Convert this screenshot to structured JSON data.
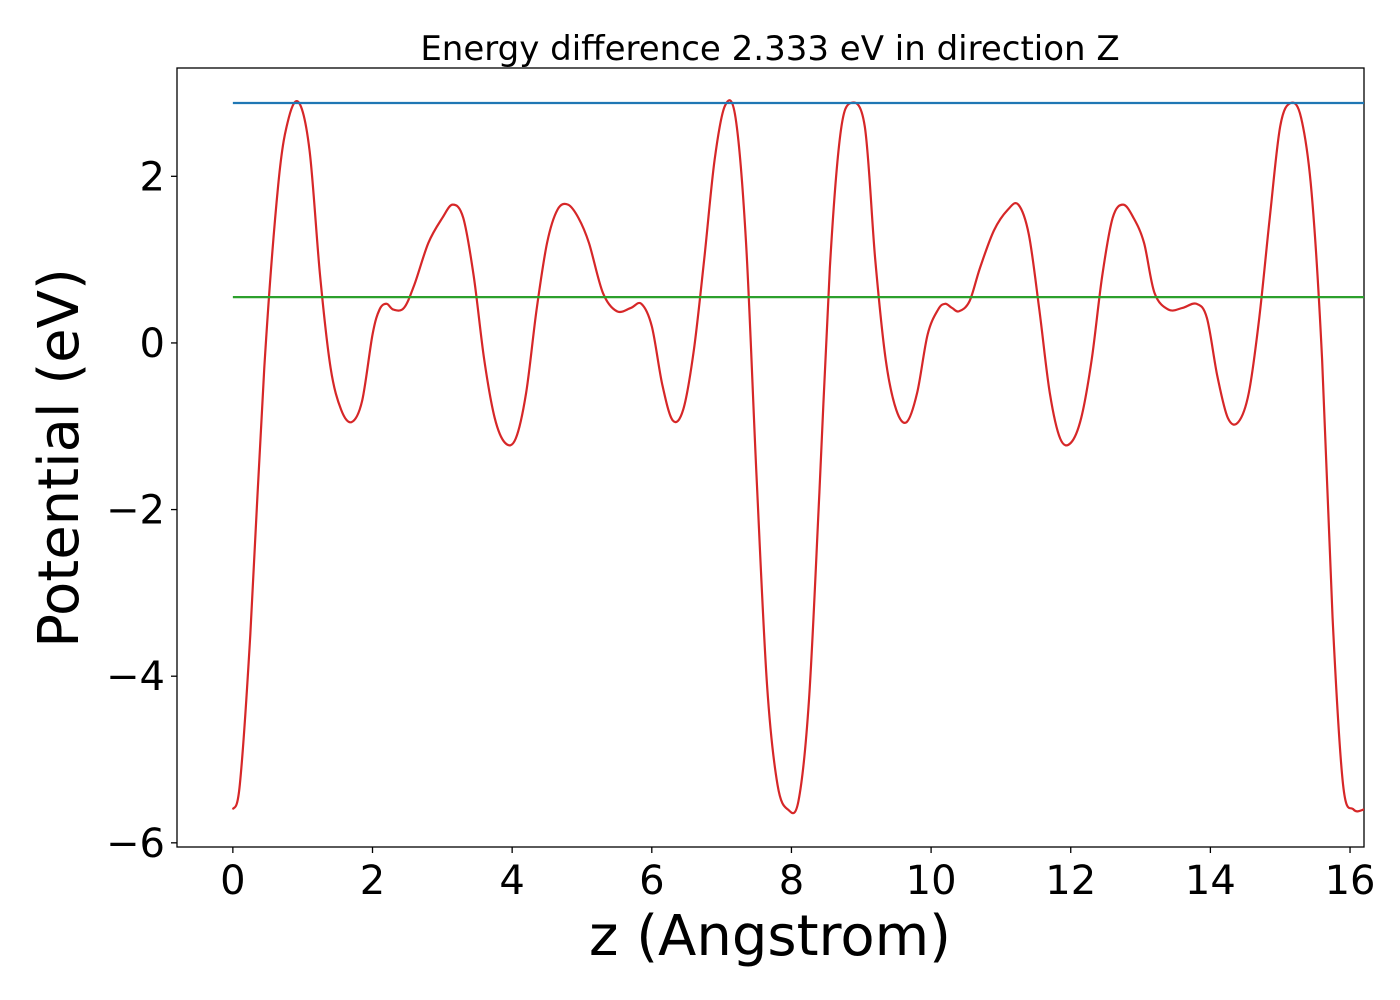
{
  "chart_data": {
    "type": "line",
    "title": "Energy difference 2.333 eV in direction Z",
    "xlabel": "z (Angstrom)",
    "ylabel": "Potential (eV)",
    "xlim": [
      -0.8,
      16.2
    ],
    "ylim": [
      -6.05,
      3.3
    ],
    "xticks": [
      0,
      2,
      4,
      6,
      8,
      10,
      12,
      14,
      16
    ],
    "yticks": [
      -6,
      -4,
      -2,
      0,
      2
    ],
    "xtick_labels": [
      "0",
      "2",
      "4",
      "6",
      "8",
      "10",
      "12",
      "14",
      "16"
    ],
    "ytick_labels": [
      "−6",
      "−4",
      "−2",
      "0",
      "2"
    ],
    "grid": false,
    "series": [
      {
        "color": "#d62728",
        "x": [
          0.0,
          0.1,
          0.25,
          0.45,
          0.65,
          0.8,
          0.95,
          1.1,
          1.25,
          1.4,
          1.55,
          1.7,
          1.85,
          2.0,
          2.1,
          2.2,
          2.3,
          2.45,
          2.6,
          2.8,
          3.0,
          3.15,
          3.3,
          3.45,
          3.6,
          3.75,
          3.9,
          4.05,
          4.2,
          4.35,
          4.5,
          4.65,
          4.8,
          4.95,
          5.1,
          5.3,
          5.5,
          5.7,
          5.85,
          6.0,
          6.15,
          6.3,
          6.45,
          6.6,
          6.75,
          6.9,
          7.05,
          7.2,
          7.35,
          7.5,
          7.65,
          7.8,
          7.95,
          8.1,
          8.25,
          8.4,
          8.55,
          8.7,
          8.85,
          9.05,
          9.2,
          9.35,
          9.5,
          9.65,
          9.8,
          9.95,
          10.1,
          10.2,
          10.3,
          10.4,
          10.55,
          10.7,
          10.9,
          11.1,
          11.25,
          11.4,
          11.55,
          11.7,
          11.85,
          12.0,
          12.15,
          12.3,
          12.45,
          12.6,
          12.75,
          12.9,
          13.05,
          13.2,
          13.4,
          13.6,
          13.8,
          13.95,
          14.1,
          14.25,
          14.4,
          14.55,
          14.7,
          14.85,
          15.0,
          15.15,
          15.3,
          15.45,
          15.6,
          15.75,
          15.9,
          16.05,
          16.2
        ],
        "y": [
          -5.6,
          -5.3,
          -3.5,
          -0.3,
          1.9,
          2.7,
          2.88,
          2.3,
          0.8,
          -0.3,
          -0.8,
          -0.95,
          -0.7,
          0.1,
          0.4,
          0.47,
          0.4,
          0.42,
          0.7,
          1.2,
          1.5,
          1.66,
          1.5,
          0.8,
          -0.2,
          -0.9,
          -1.2,
          -1.15,
          -0.6,
          0.4,
          1.2,
          1.6,
          1.66,
          1.5,
          1.2,
          0.6,
          0.38,
          0.42,
          0.47,
          0.2,
          -0.5,
          -0.93,
          -0.8,
          -0.1,
          1.0,
          2.2,
          2.85,
          2.7,
          1.2,
          -1.6,
          -4.1,
          -5.3,
          -5.6,
          -5.5,
          -4.3,
          -1.8,
          0.9,
          2.5,
          2.88,
          2.6,
          1.0,
          -0.2,
          -0.8,
          -0.95,
          -0.6,
          0.1,
          0.4,
          0.47,
          0.42,
          0.38,
          0.5,
          0.9,
          1.35,
          1.6,
          1.66,
          1.3,
          0.4,
          -0.6,
          -1.15,
          -1.2,
          -0.9,
          -0.2,
          0.8,
          1.5,
          1.66,
          1.5,
          1.2,
          0.6,
          0.4,
          0.42,
          0.47,
          0.3,
          -0.4,
          -0.9,
          -0.95,
          -0.6,
          0.3,
          1.5,
          2.6,
          2.88,
          2.7,
          1.8,
          -0.2,
          -3.3,
          -5.3,
          -5.6,
          -5.6
        ]
      },
      {
        "color": "#1f77b4",
        "x": [
          0,
          16.2
        ],
        "y": [
          2.88,
          2.88
        ]
      },
      {
        "color": "#2ca02c",
        "x": [
          0,
          16.2
        ],
        "y": [
          0.55,
          0.55
        ]
      }
    ]
  }
}
